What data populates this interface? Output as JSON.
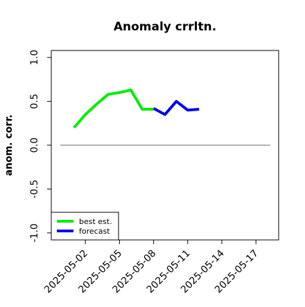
{
  "chart_data": {
    "type": "line",
    "title": "Anomaly crrltn.",
    "ylabel": "anom. corr.",
    "series": [
      {
        "name": "best est.",
        "color": "#00ee00",
        "x": [
          "2025-05-01",
          "2025-05-02",
          "2025-05-03",
          "2025-05-04",
          "2025-05-05",
          "2025-05-06",
          "2025-05-07",
          "2025-05-08"
        ],
        "values": [
          0.2,
          0.35,
          0.47,
          0.58,
          0.6,
          0.63,
          0.41,
          0.41
        ]
      },
      {
        "name": "forecast",
        "color": "#0000ee",
        "x": [
          "2025-05-08",
          "2025-05-09",
          "2025-05-10",
          "2025-05-11",
          "2025-05-12"
        ],
        "values": [
          0.42,
          0.35,
          0.5,
          0.4,
          0.41
        ]
      }
    ],
    "xlim": [
      "2025-04-29",
      "2025-05-19"
    ],
    "xticks": [
      "2025-05-02",
      "2025-05-05",
      "2025-05-08",
      "2025-05-11",
      "2025-05-14",
      "2025-05-17"
    ],
    "highlight_xtick_index": 2,
    "highlight_color": "#228b22",
    "ylim": [
      -1.08,
      1.08
    ],
    "yticks": [
      {
        "value": -1,
        "label": "-1.0"
      },
      -0.5,
      {
        "value": 0,
        "label": "0.0"
      },
      0.5,
      {
        "value": 1,
        "label": "1.0"
      }
    ],
    "reference_line": 0,
    "legend": "bottom-left"
  }
}
